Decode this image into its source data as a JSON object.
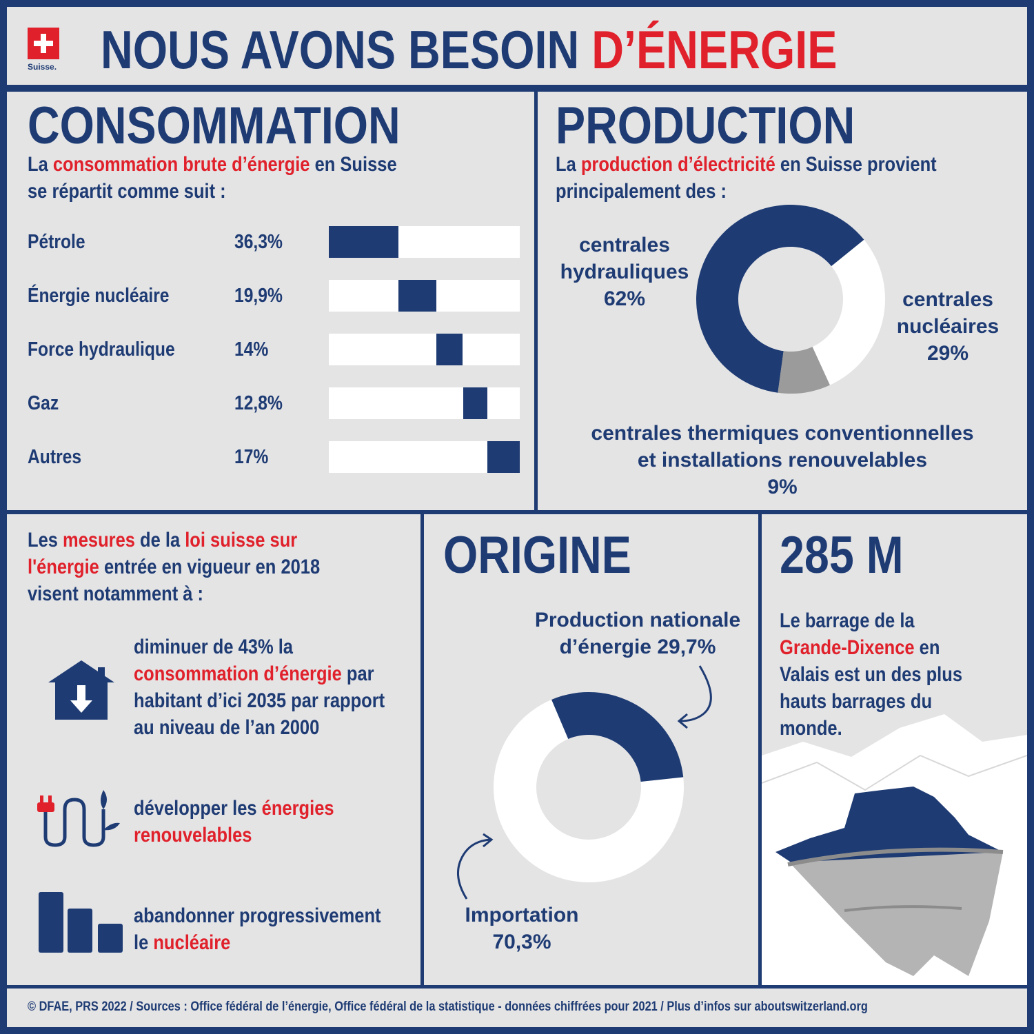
{
  "header": {
    "logo_text": "Suisse.",
    "title_part1": "NOUS AVONS BESOIN ",
    "title_part2": "D’ÉNERGIE"
  },
  "consommation": {
    "title": "CONSOMMATION",
    "intro_1": "La ",
    "intro_red": "consommation brute d’énergie",
    "intro_2": " en Suisse",
    "intro_3": "se répartit comme suit :"
  },
  "production": {
    "title": "PRODUCTION",
    "intro_1": "La ",
    "intro_red": "production d’électricité",
    "intro_2": " en Suisse provient",
    "intro_3": "principalement des :",
    "label_hydro": [
      "centrales",
      "hydrauliques",
      "62%"
    ],
    "label_nuc": [
      "centrales",
      "nucléaires",
      "29%"
    ],
    "label_therm": [
      "centrales thermiques conventionnelles",
      "et installations renouvelables",
      "9%"
    ]
  },
  "mesures": {
    "intro_1": "Les ",
    "intro_red1": "mesures",
    "intro_2": " de la ",
    "intro_red2": "loi suisse sur",
    "intro_red3": "l'énergie",
    "intro_3": " entrée en vigueur en 2018",
    "intro_4": "visent notamment à :",
    "item1": [
      "diminuer de 43% la",
      "consommation d’énergie",
      " par",
      "habitant d’ici 2035 par rapport",
      "au niveau de l’an 2000"
    ],
    "item2": [
      "développer les ",
      "énergies",
      "renouvelables"
    ],
    "item3": [
      "abandonner progressivement",
      "le ",
      "nucléaire"
    ]
  },
  "origine": {
    "title": "ORIGINE",
    "label_nat": [
      "Production nationale",
      "d’énergie 29,7%"
    ],
    "label_imp": [
      "Importation",
      "70,3%"
    ]
  },
  "barrage": {
    "title": "285 M",
    "text": [
      "Le barrage de la",
      "Grande-Dixence",
      " en",
      "Valais est un des plus",
      "hauts barrages du",
      "monde."
    ]
  },
  "footer": {
    "text": "© DFAE, PRS 2022 / Sources : Office fédéral de l’énergie, Office fédéral de la statistique - données chiffrées pour 2021  / Plus d’infos sur aboutswitzerland.org"
  },
  "colors": {
    "navy": "#1e3b73",
    "red": "#e0212b",
    "grey": "#9b9b9b",
    "white": "#ffffff",
    "bg": "#e4e4e5"
  },
  "chart_data": [
    {
      "type": "bar",
      "title": "CONSOMMATION",
      "categories": [
        "Pétrole",
        "Énergie nucléaire",
        "Force hydraulique",
        "Gaz",
        "Autres"
      ],
      "value_labels": [
        "36,3%",
        "19,9%",
        "14%",
        "12,8%",
        "17%"
      ],
      "values": [
        36.3,
        19.9,
        14,
        12.8,
        17
      ],
      "stacked_offset": true
    },
    {
      "type": "pie",
      "title": "PRODUCTION",
      "labels": [
        "centrales hydrauliques",
        "centrales nucléaires",
        "centrales thermiques conventionnelles et installations renouvelables"
      ],
      "values": [
        62,
        29,
        9
      ]
    },
    {
      "type": "pie",
      "title": "ORIGINE",
      "labels": [
        "Production nationale d’énergie",
        "Importation"
      ],
      "values": [
        29.7,
        70.3
      ]
    }
  ]
}
